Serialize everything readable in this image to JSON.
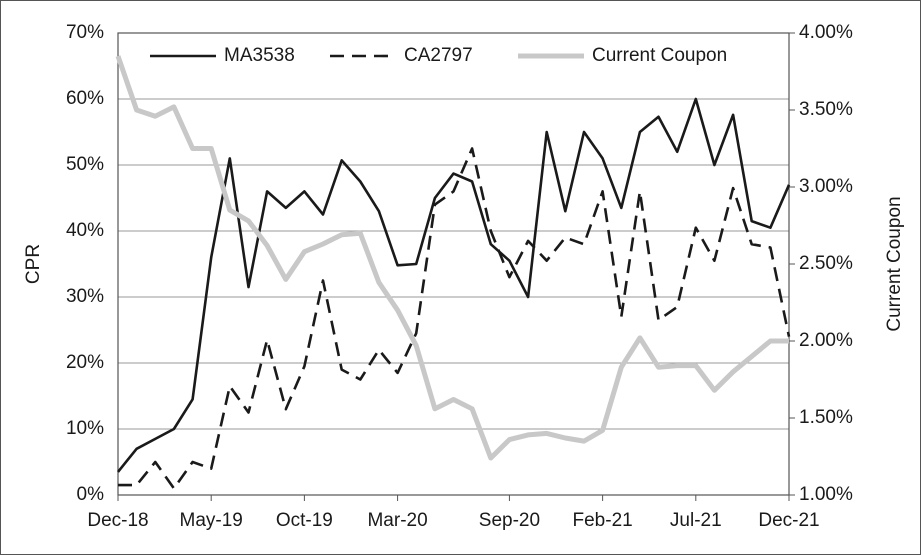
{
  "chart_data": {
    "type": "line",
    "y_label": "CPR",
    "y2_label": "Current Coupon",
    "categories": [
      "Dec-18",
      null,
      null,
      null,
      null,
      "May-19",
      null,
      null,
      null,
      null,
      "Oct-19",
      null,
      null,
      null,
      null,
      "Mar-20",
      null,
      null,
      null,
      null,
      null,
      "Sep-20",
      null,
      null,
      null,
      null,
      "Feb-21",
      null,
      null,
      null,
      null,
      "Jul-21",
      null,
      null,
      null,
      null,
      "Dec-21"
    ],
    "series": [
      {
        "name": "MA3538",
        "color": "#1a1a1a",
        "dash": "solid",
        "values": [
          3.5,
          7,
          8.5,
          10,
          14.5,
          36,
          51,
          31.5,
          46,
          43.5,
          46,
          42.5,
          50.7,
          47.5,
          43,
          34.8,
          35,
          45,
          48.7,
          47.5,
          38,
          35.5,
          30,
          55,
          43,
          55,
          51,
          43.5,
          55,
          57.3,
          52,
          60,
          50,
          57.6,
          41.5,
          40.5,
          47
        ]
      },
      {
        "name": "CA2797",
        "color": "#1a1a1a",
        "dash": "dashed",
        "values": [
          1.5,
          1.5,
          5,
          1,
          5,
          4,
          16.5,
          12.5,
          23.5,
          13,
          19.5,
          32.5,
          19,
          17.5,
          22,
          18.5,
          24.5,
          44,
          46,
          52.5,
          40,
          33,
          38.5,
          35.5,
          39,
          38,
          46,
          27,
          46,
          26.5,
          28.5,
          40.5,
          35.5,
          46.5,
          38,
          37.5,
          24
        ]
      },
      {
        "name": "Current Coupon",
        "color": "#c8c8c8",
        "dash": "solid",
        "axis": "y2",
        "values": [
          3.85,
          3.5,
          3.46,
          3.52,
          3.25,
          3.25,
          2.85,
          2.78,
          2.62,
          2.4,
          2.58,
          2.63,
          2.69,
          2.7,
          2.38,
          2.2,
          1.97,
          1.56,
          1.62,
          1.56,
          1.24,
          1.36,
          1.39,
          1.4,
          1.37,
          1.35,
          1.42,
          1.83,
          2.02,
          1.83,
          1.84,
          1.84,
          1.68,
          1.8,
          1.9,
          2,
          2
        ]
      }
    ],
    "ylim": [
      0,
      70
    ],
    "yticks": [
      {
        "value": 0,
        "label": "0%"
      },
      {
        "value": 10,
        "label": "10%"
      },
      {
        "value": 20,
        "label": "20%"
      },
      {
        "value": 30,
        "label": "30%"
      },
      {
        "value": 40,
        "label": "40%"
      },
      {
        "value": 50,
        "label": "50%"
      },
      {
        "value": 60,
        "label": "60%"
      },
      {
        "value": 70,
        "label": "70%"
      }
    ],
    "y2lim": [
      1,
      4
    ],
    "y2ticks": [
      {
        "value": 1,
        "label": "1.00%"
      },
      {
        "value": 1.5,
        "label": "1.50%"
      },
      {
        "value": 2,
        "label": "2.00%"
      },
      {
        "value": 2.5,
        "label": "2.50%"
      },
      {
        "value": 3,
        "label": "3.00%"
      },
      {
        "value": 3.5,
        "label": "3.50%"
      },
      {
        "value": 4,
        "label": "4.00%"
      }
    ],
    "grid": true,
    "legend": "top"
  }
}
